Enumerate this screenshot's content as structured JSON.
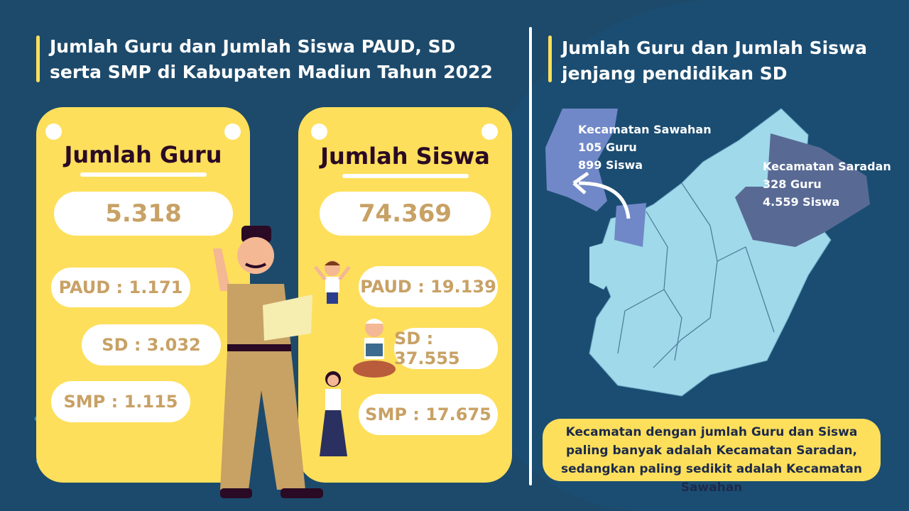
{
  "left": {
    "title": "Jumlah Guru dan Jumlah Siswa PAUD, SD serta SMP di Kabupaten Madiun Tahun 2022",
    "guru": {
      "heading": "Jumlah Guru",
      "total": "5.318",
      "paud": "PAUD : 1.171",
      "sd": "SD : 3.032",
      "smp": "SMP : 1.115"
    },
    "siswa": {
      "heading": "Jumlah Siswa",
      "total": "74.369",
      "paud": "PAUD : 19.139",
      "sd": "SD : 37.555",
      "smp": "SMP : 17.675"
    }
  },
  "right": {
    "title": "Jumlah Guru dan Jumlah Siswa jenjang pendidikan SD",
    "sawahan": {
      "name": "Kecamatan Sawahan",
      "guru": "105 Guru",
      "siswa": "899 Siswa"
    },
    "saradan": {
      "name": "Kecamatan Saradan",
      "guru": "328 Guru",
      "siswa": "4.559 Siswa"
    },
    "note": "Kecamatan dengan jumlah Guru dan Siswa paling banyak adalah Kecamatan Saradan, sedangkan paling sedikit adalah Kecamatan Sawahan"
  },
  "colors": {
    "background": "#1d4a6b",
    "card": "#fedf5b",
    "value": "#c8a165",
    "map": "#a0d9ea",
    "sawahan": "#7088c8",
    "saradan": "#586a94"
  }
}
